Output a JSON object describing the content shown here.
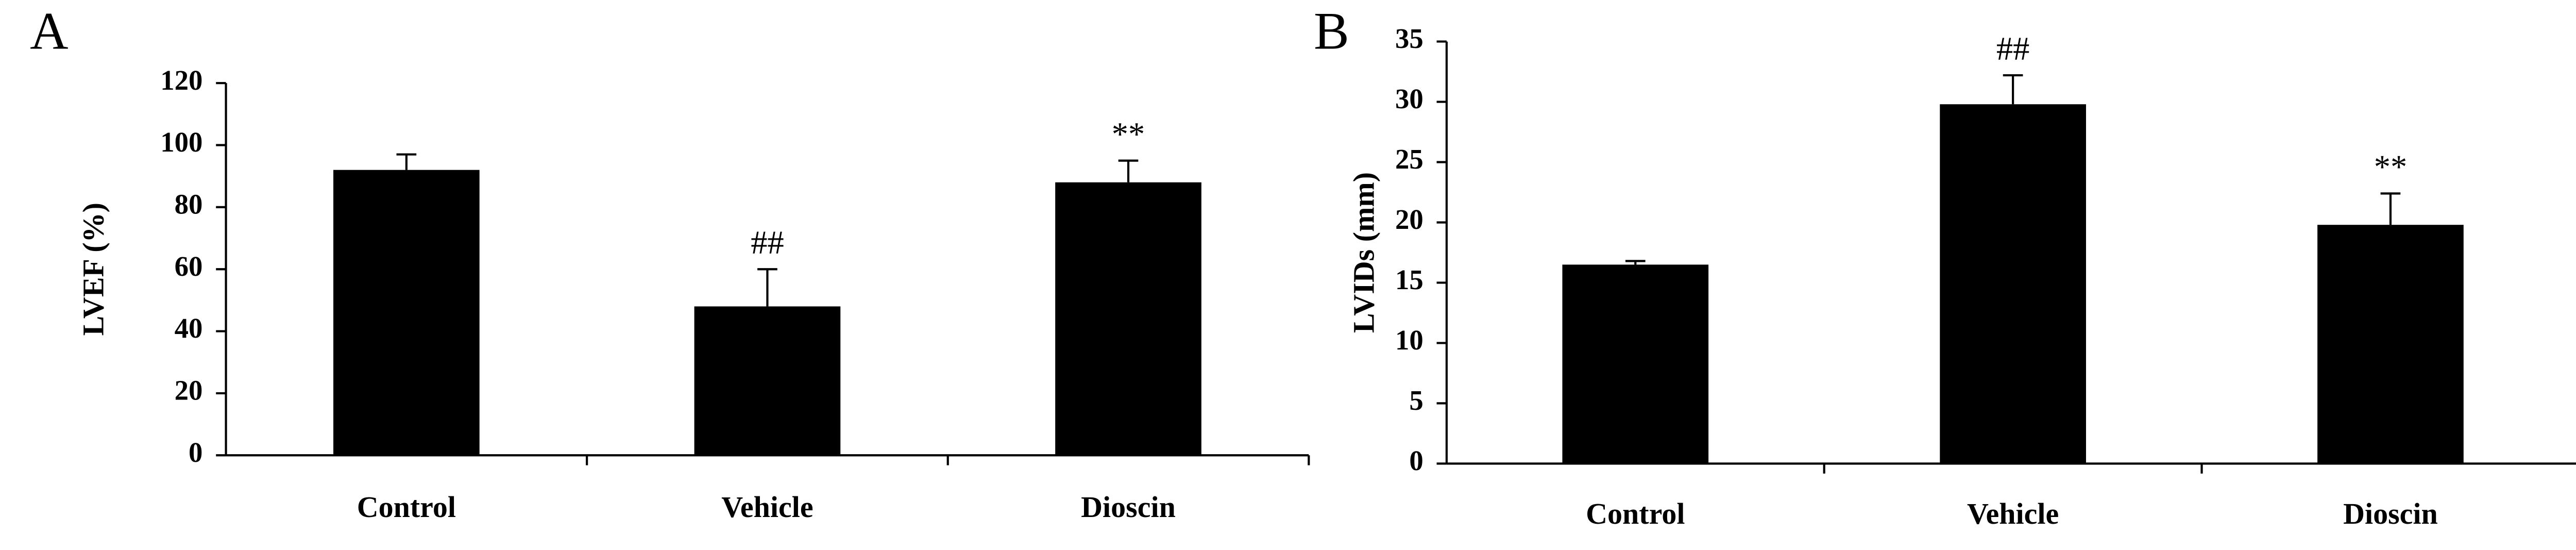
{
  "chart_data": [
    {
      "type": "bar",
      "panel_label": "A",
      "y_label": "LVEF (%)",
      "categories": [
        "Control",
        "Vehicle",
        "Dioscin"
      ],
      "values": [
        92,
        48,
        88
      ],
      "errors": [
        5,
        12,
        7
      ],
      "annotations": [
        null,
        "##",
        "**"
      ],
      "color": "#000000",
      "ylim": [
        0,
        120
      ],
      "yticks": [
        0,
        20,
        40,
        60,
        80,
        100,
        120
      ]
    },
    {
      "type": "bar",
      "panel_label": "B",
      "y_label": "LVIDs (mm)",
      "categories": [
        "Control",
        "Vehicle",
        "Dioscin"
      ],
      "values": [
        16.5,
        29.8,
        19.8
      ],
      "errors": [
        0.3,
        2.4,
        2.6
      ],
      "annotations": [
        null,
        "##",
        "**"
      ],
      "color": "#000000",
      "ylim": [
        0,
        35
      ],
      "yticks": [
        0,
        5,
        10,
        15,
        20,
        25,
        30,
        35
      ]
    }
  ]
}
